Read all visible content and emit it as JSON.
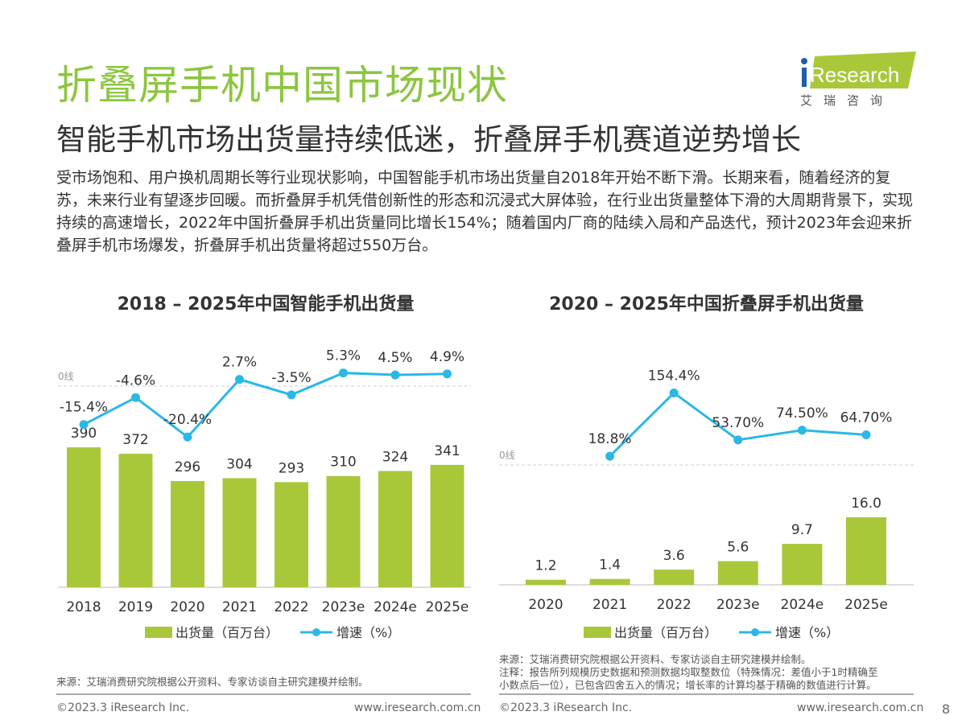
{
  "header": {
    "title": "折叠屏手机中国市场现状",
    "subtitle": "智能手机市场出货量持续低迷，折叠屏手机赛道逆势增长",
    "body": "受市场饱和、用户换机周期长等行业现状影响，中国智能手机市场出货量自2018年开始不断下滑。长期来看，随着经济的复苏，未来行业有望逐步回暖。而折叠屏手机凭借创新性的形态和沉浸式大屏体验，在行业出货量整体下滑的大周期背景下，实现持续的高速增长，2022年中国折叠屏手机出货量同比增长154%；随着国内厂商的陆续入局和产品迭代，预计2023年会迎来折叠屏手机市场爆发，折叠屏手机出货量将超过550万台。"
  },
  "logo": {
    "text": "iResearch",
    "cn": "艾 瑞 咨 询"
  },
  "colors": {
    "bar": "#a8c83a",
    "line": "#2bb8e6",
    "title": "#8cc63f"
  },
  "chart_data": [
    {
      "type": "bar+line",
      "title": "2018 – 2025年中国智能手机出货量",
      "categories": [
        "2018",
        "2019",
        "2020",
        "2021",
        "2022",
        "2023e",
        "2024e",
        "2025e"
      ],
      "series": [
        {
          "name": "出货量（百万台）",
          "type": "bar",
          "values": [
            390,
            372,
            296,
            304,
            293,
            310,
            324,
            341
          ]
        },
        {
          "name": "增速（%）",
          "type": "line",
          "values": [
            -15.4,
            -4.6,
            -20.4,
            2.7,
            -3.5,
            5.3,
            4.5,
            4.9
          ],
          "labels": [
            "-15.4%",
            "-4.6%",
            "-20.4%",
            "2.7%",
            "-3.5%",
            "5.3%",
            "4.5%",
            "4.9%"
          ]
        }
      ],
      "zero_label": "0线",
      "legend_position": "bottom"
    },
    {
      "type": "bar+line",
      "title": "2020 – 2025年中国折叠屏手机出货量",
      "categories": [
        "2020",
        "2021",
        "2022",
        "2023e",
        "2024e",
        "2025e"
      ],
      "series": [
        {
          "name": "出货量（百万台）",
          "type": "bar",
          "values": [
            1.2,
            1.4,
            3.6,
            5.6,
            9.7,
            16.0
          ],
          "labels": [
            "1.2",
            "1.4",
            "3.6",
            "5.6",
            "9.7",
            "16.0"
          ]
        },
        {
          "name": "增速（%）",
          "type": "line",
          "values": [
            null,
            18.8,
            154.4,
            53.7,
            74.5,
            64.7
          ],
          "labels": [
            "",
            "18.8%",
            "154.4%",
            "53.70%",
            "74.50%",
            "64.70%"
          ]
        }
      ],
      "zero_label": "0线",
      "legend_position": "bottom"
    }
  ],
  "sources": {
    "left": "来源：艾瑞消费研究院根据公开资料、专家访谈自主研究建模并绘制。",
    "right": [
      "来源：艾瑞消费研究院根据公开资料、专家访谈自主研究建模并绘制。",
      "注释：报告所列规模历史数据和预测数据均取整数位（特殊情况：差值小于1时精确至",
      "小数点后一位），已包含四舍五入的情况；增长率的计算均基于精确的数值进行计算。"
    ]
  },
  "footer": {
    "copyright": "©2023.3 iResearch Inc.",
    "url": "www.iresearch.com.cn",
    "page": "8"
  }
}
